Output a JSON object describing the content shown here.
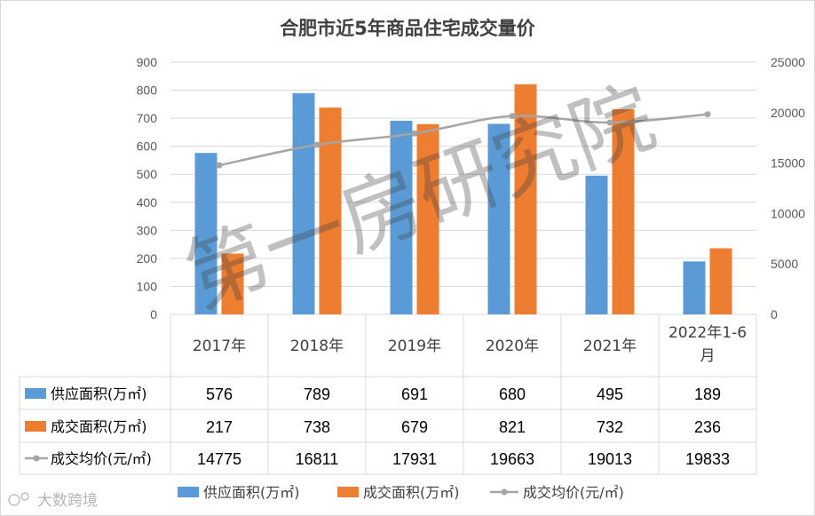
{
  "chart_data": {
    "type": "bar",
    "title": "合肥市近5年商品住宅成交量价",
    "categories": [
      "2017年",
      "2018年",
      "2019年",
      "2020年",
      "2021年",
      "2022年1-6月"
    ],
    "category_lines": [
      [
        "2017年"
      ],
      [
        "2018年"
      ],
      [
        "2019年"
      ],
      [
        "2020年"
      ],
      [
        "2021年"
      ],
      [
        "2022年1-",
        "6",
        "月"
      ]
    ],
    "series": [
      {
        "name": "供应面积(万㎡)",
        "type": "bar",
        "axis": "left",
        "color": "#5b9bd5",
        "values": [
          576,
          789,
          691,
          680,
          495,
          189
        ]
      },
      {
        "name": "成交面积(万㎡)",
        "type": "bar",
        "axis": "left",
        "color": "#ed7d31",
        "values": [
          217,
          738,
          679,
          821,
          732,
          236
        ]
      },
      {
        "name": "成交均价(元/㎡)",
        "type": "line",
        "axis": "right",
        "color": "#a5a5a5",
        "values": [
          14775,
          16811,
          17931,
          19663,
          19013,
          19833
        ]
      }
    ],
    "y_left": {
      "min": 0,
      "max": 900,
      "ticks": [
        "900",
        "800",
        "700",
        "600",
        "500",
        "400",
        "300",
        "200",
        "100",
        "0"
      ]
    },
    "y_right": {
      "min": 0,
      "max": 25000,
      "ticks": [
        "25000",
        "20000",
        "15000",
        "10000",
        "5000",
        "0"
      ]
    },
    "grid": true,
    "data_table": true,
    "legend_position": "bottom"
  },
  "watermark": "第一房研究院",
  "logo_text": "大数跨境"
}
